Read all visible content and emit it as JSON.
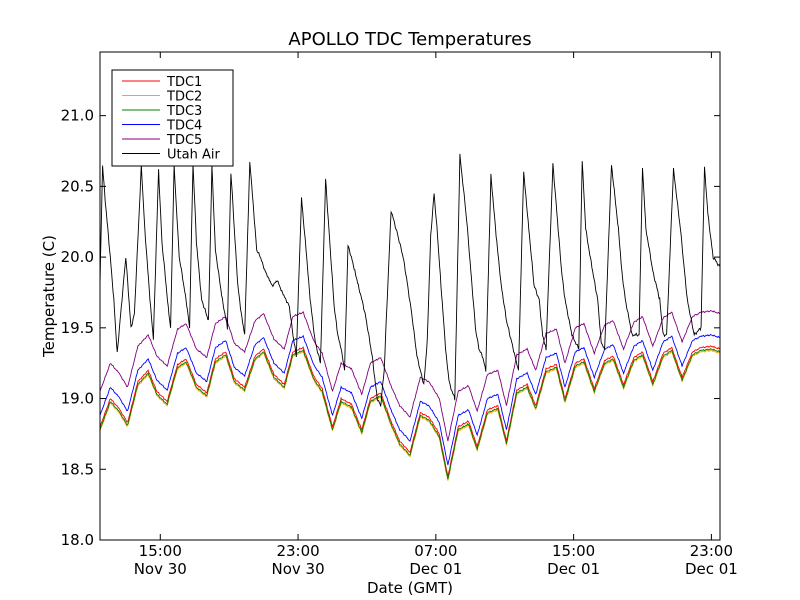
{
  "chart_data": {
    "type": "line",
    "title": "APOLLO TDC Temperatures",
    "xlabel": "Date (GMT)",
    "ylabel": "Temperature (C)",
    "xlim_hours": [
      0,
      36
    ],
    "ylim": [
      18.0,
      21.45
    ],
    "x_ticks": [
      {
        "hour": 3.5,
        "time": "15:00",
        "date": "Nov 30"
      },
      {
        "hour": 11.5,
        "time": "23:00",
        "date": "Nov 30"
      },
      {
        "hour": 19.5,
        "time": "07:00",
        "date": "Dec 01"
      },
      {
        "hour": 27.5,
        "time": "15:00",
        "date": "Dec 01"
      },
      {
        "hour": 35.5,
        "time": "23:00",
        "date": "Dec 01"
      }
    ],
    "y_ticks": [
      {
        "value": 18.0,
        "label": "18.0"
      },
      {
        "value": 18.5,
        "label": "18.5"
      },
      {
        "value": 19.0,
        "label": "19.0"
      },
      {
        "value": 19.5,
        "label": "19.5"
      },
      {
        "value": 20.0,
        "label": "20.0"
      },
      {
        "value": 20.5,
        "label": "20.5"
      },
      {
        "value": 21.0,
        "label": "21.0"
      }
    ],
    "grid": false,
    "legend_position": "top-left",
    "series": [
      {
        "name": "TDC1",
        "color": "#ff0000",
        "offset": 0.0
      },
      {
        "name": "TDC2",
        "color": "#ffa500",
        "offset": -0.03
      },
      {
        "name": "TDC3",
        "color": "#008000",
        "offset": -0.02
      },
      {
        "name": "TDC4",
        "color": "#0000ff",
        "offset": 0.08
      },
      {
        "name": "TDC5",
        "color": "#800080",
        "offset": 0.25
      },
      {
        "name": "Utah Air",
        "color": "#000000"
      }
    ],
    "tdc_baseline": {
      "x": [
        0.0,
        0.6,
        1.1,
        1.6,
        2.2,
        2.8,
        3.3,
        3.9,
        4.5,
        5.0,
        5.6,
        6.2,
        6.7,
        7.3,
        7.8,
        8.4,
        9.0,
        9.5,
        10.1,
        10.7,
        11.2,
        11.8,
        12.4,
        12.9,
        13.5,
        14.0,
        14.6,
        15.2,
        15.7,
        16.3,
        16.9,
        17.4,
        18.0,
        18.6,
        19.1,
        19.7,
        20.2,
        20.8,
        21.4,
        21.9,
        22.5,
        23.1,
        23.6,
        24.2,
        24.8,
        25.3,
        25.9,
        26.5,
        27.0,
        27.6,
        28.1,
        28.7,
        29.3,
        29.8,
        30.4,
        31.0,
        31.5,
        32.1,
        32.7,
        33.2,
        33.8,
        34.4,
        34.9,
        35.5,
        36.0
      ],
      "y": [
        18.8,
        19.0,
        18.93,
        18.83,
        19.12,
        19.2,
        19.05,
        18.98,
        19.24,
        19.28,
        19.1,
        19.04,
        19.28,
        19.33,
        19.14,
        19.08,
        19.3,
        19.35,
        19.17,
        19.1,
        19.33,
        19.36,
        19.16,
        19.07,
        18.8,
        19.0,
        18.96,
        18.78,
        19.0,
        19.04,
        18.84,
        18.7,
        18.62,
        18.9,
        18.87,
        18.75,
        18.45,
        18.8,
        18.84,
        18.66,
        18.92,
        18.95,
        18.7,
        19.06,
        19.1,
        18.95,
        19.21,
        19.24,
        19.0,
        19.25,
        19.28,
        19.07,
        19.27,
        19.3,
        19.1,
        19.29,
        19.33,
        19.12,
        19.32,
        19.36,
        19.15,
        19.33,
        19.36,
        19.37,
        19.35
      ]
    },
    "utah_air": {
      "x": [
        0.0,
        0.15,
        0.3,
        0.6,
        0.8,
        1.0,
        1.2,
        1.5,
        1.8,
        2.0,
        2.4,
        2.6,
        2.9,
        3.1,
        3.4,
        3.6,
        4.0,
        4.1,
        4.3,
        4.6,
        5.0,
        5.2,
        5.4,
        5.6,
        5.9,
        6.3,
        6.5,
        6.7,
        7.1,
        7.4,
        7.6,
        7.8,
        8.0,
        8.2,
        8.4,
        8.7,
        9.0,
        9.1,
        9.3,
        9.6,
        9.8,
        10.0,
        10.3,
        10.6,
        10.8,
        11.0,
        11.2,
        11.4,
        11.7,
        12.0,
        12.2,
        12.5,
        12.8,
        13.1,
        13.4,
        13.6,
        13.8,
        14.0,
        14.2,
        14.4,
        14.6,
        14.8,
        15.0,
        15.4,
        15.8,
        16.1,
        16.3,
        16.5,
        16.9,
        17.3,
        17.6,
        17.8,
        18.1,
        18.4,
        18.6,
        18.8,
        19.0,
        19.2,
        19.4,
        19.6,
        19.8,
        20.1,
        20.3,
        20.6,
        20.9,
        21.3,
        21.6,
        21.8,
        22.0,
        22.2,
        22.4,
        22.7,
        23.0,
        23.3,
        23.6,
        23.9,
        24.1,
        24.3,
        24.6,
        24.9,
        25.2,
        25.5,
        25.7,
        25.9,
        26.3,
        26.6,
        26.8,
        27.0,
        27.4,
        27.8,
        28.0,
        28.2,
        28.6,
        28.9,
        29.1,
        29.3,
        29.7,
        30.1,
        30.3,
        30.5,
        30.9,
        31.3,
        31.5,
        31.7,
        32.1,
        32.5,
        32.7,
        32.9,
        33.3,
        33.7,
        33.9,
        34.1,
        34.5,
        34.9,
        35.1,
        35.3,
        35.6,
        36.0
      ],
      "y": [
        19.8,
        20.65,
        20.4,
        20.0,
        19.7,
        19.32,
        19.6,
        20.0,
        19.5,
        19.6,
        20.65,
        20.2,
        19.7,
        19.42,
        20.62,
        20.1,
        19.6,
        19.5,
        20.65,
        20.0,
        19.7,
        19.5,
        20.66,
        20.1,
        19.7,
        19.55,
        20.65,
        20.05,
        19.7,
        19.5,
        20.6,
        20.2,
        19.8,
        19.6,
        19.45,
        20.68,
        20.2,
        20.05,
        20.0,
        19.9,
        19.85,
        19.8,
        19.83,
        19.75,
        19.7,
        19.65,
        19.45,
        19.3,
        20.42,
        20.0,
        19.7,
        19.4,
        19.25,
        20.55,
        20.0,
        19.65,
        19.45,
        19.35,
        19.2,
        20.08,
        20.0,
        19.9,
        19.8,
        19.6,
        19.3,
        19.0,
        18.95,
        19.2,
        20.33,
        20.15,
        20.0,
        19.85,
        19.6,
        19.3,
        19.2,
        19.1,
        19.4,
        20.15,
        20.45,
        20.15,
        19.8,
        19.3,
        19.1,
        19.0,
        20.72,
        20.25,
        19.8,
        19.5,
        19.35,
        19.3,
        19.2,
        20.58,
        20.15,
        19.8,
        19.55,
        19.4,
        19.3,
        19.2,
        20.6,
        20.2,
        19.8,
        19.7,
        19.45,
        19.35,
        20.66,
        20.2,
        19.9,
        19.7,
        19.45,
        19.35,
        20.68,
        20.2,
        19.9,
        19.7,
        19.4,
        19.35,
        20.65,
        20.2,
        19.9,
        19.7,
        19.45,
        19.45,
        20.63,
        20.2,
        19.9,
        19.7,
        19.45,
        19.45,
        20.62,
        20.2,
        19.95,
        19.7,
        19.45,
        19.5,
        20.63,
        20.3,
        20.0,
        19.93
      ]
    }
  }
}
